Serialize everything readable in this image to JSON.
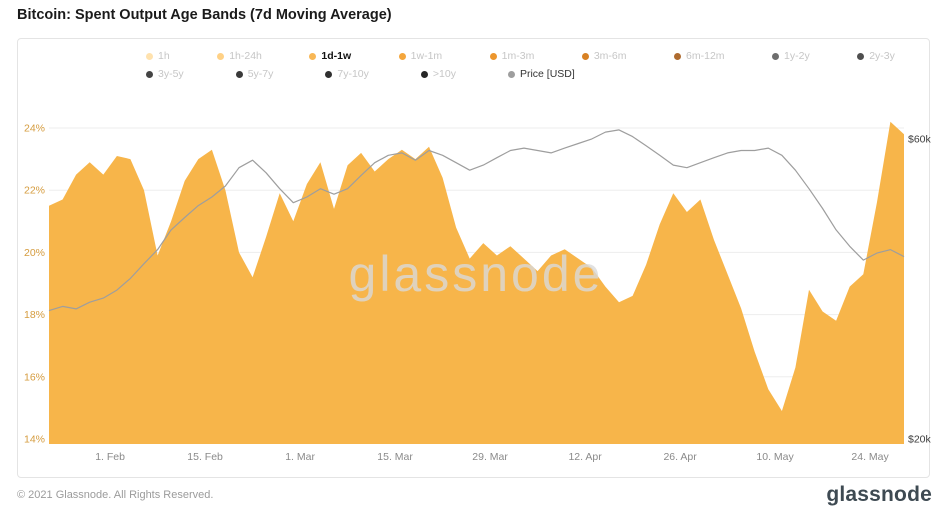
{
  "page": {
    "title": "Bitcoin: Spent Output Age Bands (7d Moving Average)",
    "watermark": "glassnode",
    "footer_left": "© 2021 Glassnode. All Rights Reserved.",
    "footer_logo": "glassnode"
  },
  "colors": {
    "area": "#F7B54A",
    "price_line": "#9E9E9E",
    "grid": "#EDEDED",
    "y_left_labels": "#D59C3F",
    "y_right_labels": "#3D3D3D",
    "x_labels": "#8A8A8A",
    "watermark": "#DADADA"
  },
  "legend": {
    "row1": [
      {
        "label": "1h",
        "color": "#FFE2AE",
        "active": false
      },
      {
        "label": "1h-24h",
        "color": "#FFD186",
        "active": false
      },
      {
        "label": "1d-1w",
        "color": "#F8B755",
        "active": true
      },
      {
        "label": "1w-1m",
        "color": "#F4A63C",
        "active": false
      },
      {
        "label": "1m-3m",
        "color": "#EC962D",
        "active": false
      },
      {
        "label": "3m-6m",
        "color": "#D88124",
        "active": false
      },
      {
        "label": "6m-12m",
        "color": "#AE6B2F",
        "active": false
      },
      {
        "label": "1y-2y",
        "color": "#6E6E6E",
        "active": false
      },
      {
        "label": "2y-3y",
        "color": "#4F4F4F",
        "active": false
      }
    ],
    "row2": [
      {
        "label": "3y-5y",
        "color": "#444444",
        "active": false
      },
      {
        "label": "5y-7y",
        "color": "#3A3A3A",
        "active": false
      },
      {
        "label": "7y-10y",
        "color": "#303030",
        "active": false
      },
      {
        "label": ">10y",
        "color": "#262626",
        "active": false
      },
      {
        "label": "Price [USD]",
        "color": "#9E9E9E",
        "active": true,
        "price": true
      }
    ]
  },
  "chart_data": {
    "type": "area",
    "title": "Bitcoin: Spent Output Age Bands (7d Moving Average)",
    "x": [
      "Jan 23",
      "Jan 25",
      "Jan 27",
      "Jan 29",
      "Jan 31",
      "Feb 2",
      "Feb 4",
      "Feb 6",
      "Feb 8",
      "Feb 10",
      "Feb 12",
      "Feb 14",
      "Feb 16",
      "Feb 18",
      "Feb 20",
      "Feb 22",
      "Feb 24",
      "Feb 26",
      "Feb 28",
      "Mar 2",
      "Mar 4",
      "Mar 6",
      "Mar 8",
      "Mar 10",
      "Mar 12",
      "Mar 14",
      "Mar 16",
      "Mar 18",
      "Mar 20",
      "Mar 22",
      "Mar 24",
      "Mar 26",
      "Mar 28",
      "Mar 30",
      "Apr 1",
      "Apr 3",
      "Apr 5",
      "Apr 7",
      "Apr 9",
      "Apr 11",
      "Apr 13",
      "Apr 15",
      "Apr 17",
      "Apr 19",
      "Apr 21",
      "Apr 23",
      "Apr 25",
      "Apr 27",
      "Apr 29",
      "May 1",
      "May 3",
      "May 5",
      "May 7",
      "May 9",
      "May 11",
      "May 13",
      "May 15",
      "May 17",
      "May 19",
      "May 21",
      "May 23",
      "May 25",
      "May 27",
      "May 29"
    ],
    "point_interval_days": 2,
    "span_days": 126,
    "series": [
      {
        "name": "1d-1w",
        "type": "area",
        "unit": "%",
        "values": [
          21.5,
          21.7,
          22.5,
          22.9,
          22.5,
          23.1,
          23.0,
          22.0,
          19.9,
          21.0,
          22.3,
          23.0,
          23.3,
          22.0,
          20.0,
          19.2,
          20.5,
          21.9,
          21.0,
          22.2,
          22.9,
          21.4,
          22.8,
          23.2,
          22.6,
          23.0,
          23.3,
          23.0,
          23.4,
          22.4,
          20.8,
          19.8,
          20.3,
          19.9,
          20.2,
          19.8,
          19.4,
          19.9,
          20.1,
          19.8,
          19.5,
          18.9,
          18.4,
          18.6,
          19.6,
          20.9,
          21.9,
          21.3,
          21.7,
          20.4,
          19.3,
          18.2,
          16.8,
          15.6,
          14.9,
          16.3,
          18.8,
          18.1,
          17.8,
          18.9,
          19.3,
          21.6,
          24.2,
          23.8
        ]
      },
      {
        "name": "Price [USD]",
        "type": "line",
        "unit": "USD thousands",
        "values": [
          32.0,
          32.5,
          32.2,
          33.0,
          33.5,
          34.5,
          36.0,
          38.0,
          40.0,
          43.0,
          45.0,
          47.0,
          48.5,
          50.5,
          54.0,
          55.5,
          53.0,
          50.0,
          47.5,
          48.5,
          50.0,
          49.0,
          50.0,
          52.5,
          55.0,
          56.5,
          57.0,
          55.5,
          57.5,
          56.5,
          55.0,
          53.5,
          54.5,
          56.0,
          57.5,
          58.0,
          57.5,
          57.0,
          58.0,
          59.0,
          60.0,
          61.5,
          62.0,
          60.5,
          58.5,
          56.5,
          54.5,
          54.0,
          55.0,
          56.0,
          57.0,
          57.5,
          57.5,
          58.0,
          56.5,
          53.5,
          50.0,
          46.5,
          43.0,
          40.5,
          38.5,
          39.5,
          40.0,
          39.0
        ]
      }
    ],
    "y_left": {
      "unit": "%",
      "min": 14,
      "max": 24,
      "tick_values": [
        24,
        22,
        20,
        18,
        16,
        14
      ],
      "tick_labels": [
        "24%",
        "22%",
        "20%",
        "18%",
        "16%",
        "14%"
      ]
    },
    "y_right": {
      "scale": "log",
      "ticks": [
        {
          "label": "$60k",
          "value": 60
        },
        {
          "label": "$20k",
          "value": 20
        }
      ]
    },
    "x_ticks": {
      "labels": [
        "1. Feb",
        "15. Feb",
        "1. Mar",
        "15. Mar",
        "29. Mar",
        "12. Apr",
        "26. Apr",
        "10. May",
        "24. May"
      ],
      "days": [
        9,
        23,
        37,
        51,
        65,
        79,
        93,
        107,
        121
      ]
    },
    "grid": "horizontal-only",
    "legend_position": "top"
  }
}
